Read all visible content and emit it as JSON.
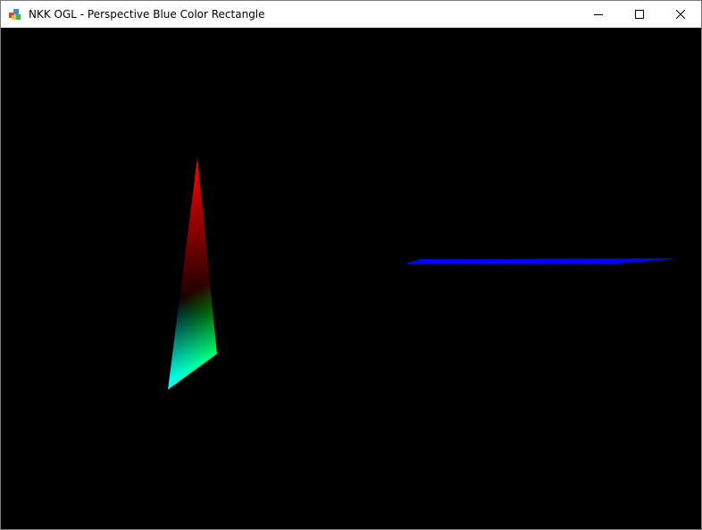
{
  "window": {
    "title": "NKK OGL - Perspective Blue Color Rectangle",
    "icon": "opengl-app-icon",
    "controls": {
      "minimize_icon": "minimize-icon",
      "maximize_icon": "maximize-icon",
      "close_icon": "close-icon"
    }
  },
  "viewport": {
    "background_color": "#000000",
    "objects": [
      {
        "name": "color-interpolated triangle",
        "vertex_colors": [
          "#ff0000",
          "#00ff00",
          "#0000ff"
        ]
      },
      {
        "name": "blue rectangle",
        "fill_color": "#0000ff"
      }
    ]
  }
}
